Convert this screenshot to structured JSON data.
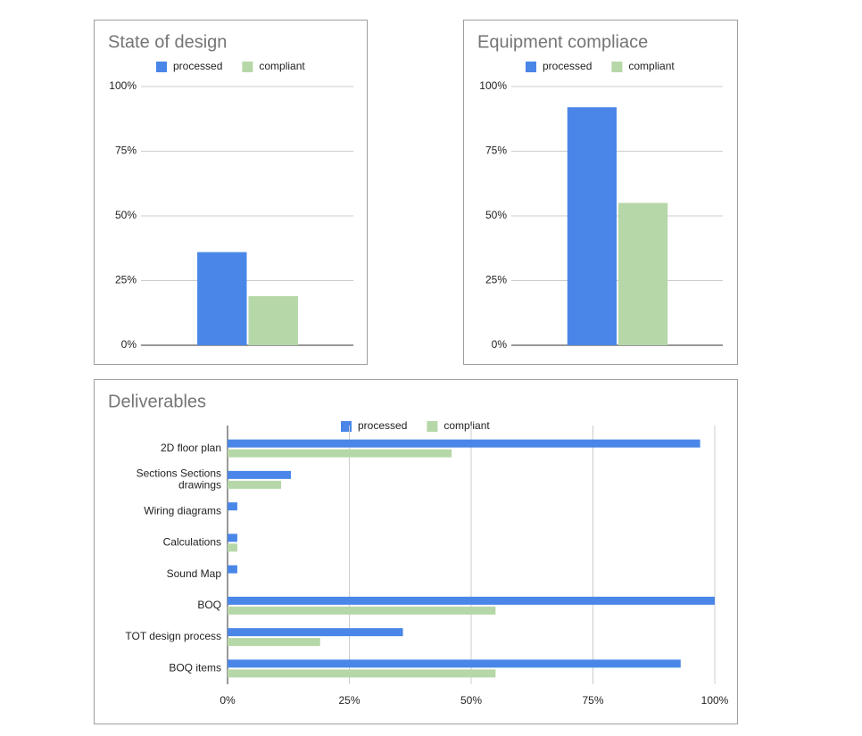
{
  "chart_data": [
    {
      "type": "bar",
      "orientation": "vertical",
      "title": "State of design",
      "categories": [
        null
      ],
      "series": [
        {
          "name": "processed",
          "color": "#4a86e8",
          "values": [
            36
          ]
        },
        {
          "name": "compliant",
          "color": "#b6d7a8",
          "values": [
            19
          ]
        }
      ],
      "ylim": [
        0,
        100
      ],
      "yticks": [
        {
          "value": 0,
          "label": "0%"
        },
        {
          "value": 25,
          "label": "25%"
        },
        {
          "value": 50,
          "label": "50%"
        },
        {
          "value": 75,
          "label": "75%"
        },
        {
          "value": 100,
          "label": "100%"
        }
      ],
      "grid": true,
      "legend": "top"
    },
    {
      "type": "bar",
      "orientation": "vertical",
      "title": "Equipment compliace",
      "categories": [
        null
      ],
      "series": [
        {
          "name": "processed",
          "color": "#4a86e8",
          "values": [
            92
          ]
        },
        {
          "name": "compliant",
          "color": "#b6d7a8",
          "values": [
            55
          ]
        }
      ],
      "ylim": [
        0,
        100
      ],
      "yticks": [
        {
          "value": 0,
          "label": "0%"
        },
        {
          "value": 25,
          "label": "25%"
        },
        {
          "value": 50,
          "label": "50%"
        },
        {
          "value": 75,
          "label": "75%"
        },
        {
          "value": 100,
          "label": "100%"
        }
      ],
      "grid": true,
      "legend": "top"
    },
    {
      "type": "bar",
      "orientation": "horizontal",
      "title": "Deliverables",
      "categories": [
        "2D floor plan",
        "Sections Sections drawings",
        "Wiring diagrams",
        "Calculations",
        "Sound Map",
        "BOQ",
        "TOT design process",
        "BOQ items"
      ],
      "series": [
        {
          "name": "processed",
          "color": "#4a86e8",
          "values": [
            97,
            13,
            2,
            2,
            2,
            100,
            36,
            93
          ]
        },
        {
          "name": "compliant",
          "color": "#b6d7a8",
          "values": [
            46,
            11,
            0,
            2,
            0,
            55,
            19,
            55
          ]
        }
      ],
      "xlim": [
        0,
        100
      ],
      "xticks": [
        {
          "value": 0,
          "label": "0%"
        },
        {
          "value": 25,
          "label": "25%"
        },
        {
          "value": 50,
          "label": "50%"
        },
        {
          "value": 75,
          "label": "75%"
        },
        {
          "value": 100,
          "label": "100%"
        }
      ],
      "grid": true,
      "legend": "top"
    }
  ]
}
